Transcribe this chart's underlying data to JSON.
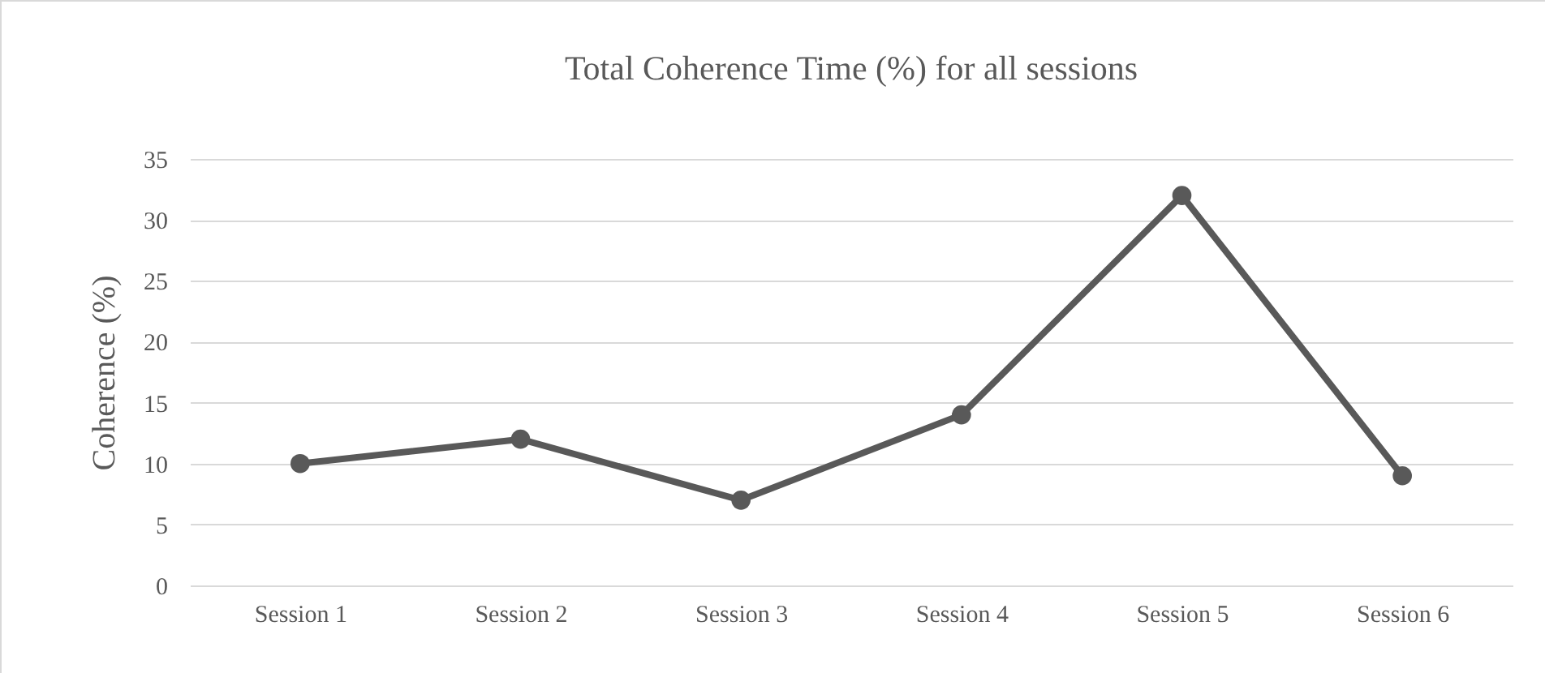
{
  "chart_data": {
    "type": "line",
    "title": "Total Coherence Time (%) for all sessions",
    "ylabel": "Coherence (%)",
    "categories": [
      "Session 1",
      "Session 2",
      "Session 3",
      "Session 4",
      "Session 5",
      "Session 6"
    ],
    "series": [
      {
        "color": "#595959",
        "values": [
          10,
          12,
          7,
          14,
          32,
          9
        ]
      }
    ],
    "ylim": [
      0,
      35
    ],
    "yticks": [
      0,
      5,
      10,
      15,
      20,
      25,
      30,
      35
    ],
    "grid": "y",
    "marker": "circle",
    "line_style": "solid",
    "legend": false
  }
}
